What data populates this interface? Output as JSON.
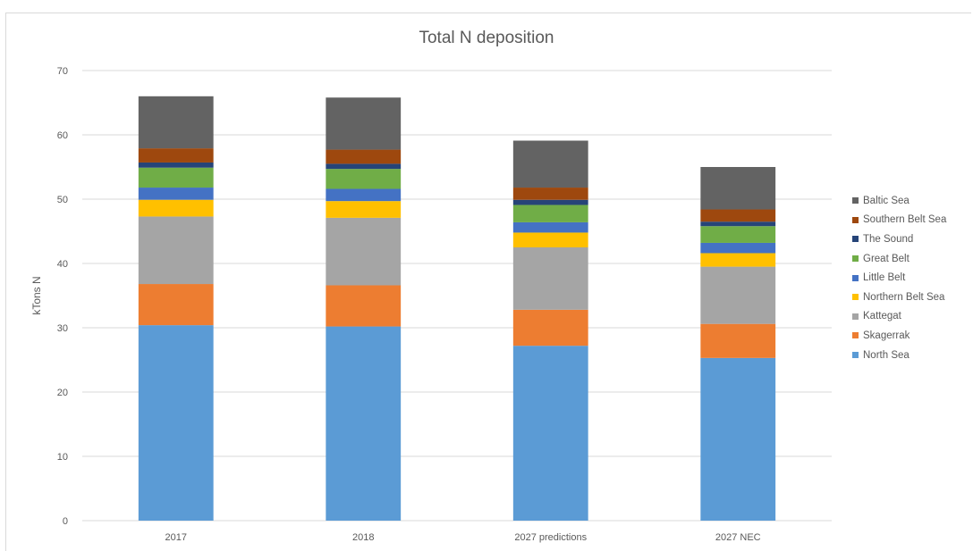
{
  "chart_data": {
    "type": "bar",
    "stacked": true,
    "title": "Total N deposition",
    "xlabel": "",
    "ylabel": "kTons N",
    "ylim": [
      0,
      70
    ],
    "yticks": [
      0,
      10,
      20,
      30,
      40,
      50,
      60,
      70
    ],
    "grid": true,
    "legend_position": "right",
    "categories": [
      "2017",
      "2018",
      "2027 predictions",
      "2027 NEC"
    ],
    "series": [
      {
        "name": "North Sea",
        "color": "#5b9bd5",
        "values": [
          30.4,
          30.2,
          27.2,
          25.3
        ]
      },
      {
        "name": "Skagerrak",
        "color": "#ed7d31",
        "values": [
          6.4,
          6.4,
          5.6,
          5.3
        ]
      },
      {
        "name": "Kattegat",
        "color": "#a5a5a5",
        "values": [
          10.5,
          10.5,
          9.7,
          8.9
        ]
      },
      {
        "name": "Northern Belt Sea",
        "color": "#ffc000",
        "values": [
          2.6,
          2.6,
          2.3,
          2.1
        ]
      },
      {
        "name": "Little Belt",
        "color": "#4472c4",
        "values": [
          1.9,
          1.9,
          1.6,
          1.6
        ]
      },
      {
        "name": "Great Belt",
        "color": "#70ad47",
        "values": [
          3.1,
          3.1,
          2.7,
          2.6
        ]
      },
      {
        "name": "The Sound",
        "color": "#264478",
        "values": [
          0.8,
          0.8,
          0.8,
          0.7
        ]
      },
      {
        "name": "Southern Belt Sea",
        "color": "#9e480e",
        "values": [
          2.2,
          2.2,
          1.9,
          1.9
        ]
      },
      {
        "name": "Baltic Sea",
        "color": "#636363",
        "values": [
          8.1,
          8.1,
          7.3,
          6.6
        ]
      }
    ]
  }
}
